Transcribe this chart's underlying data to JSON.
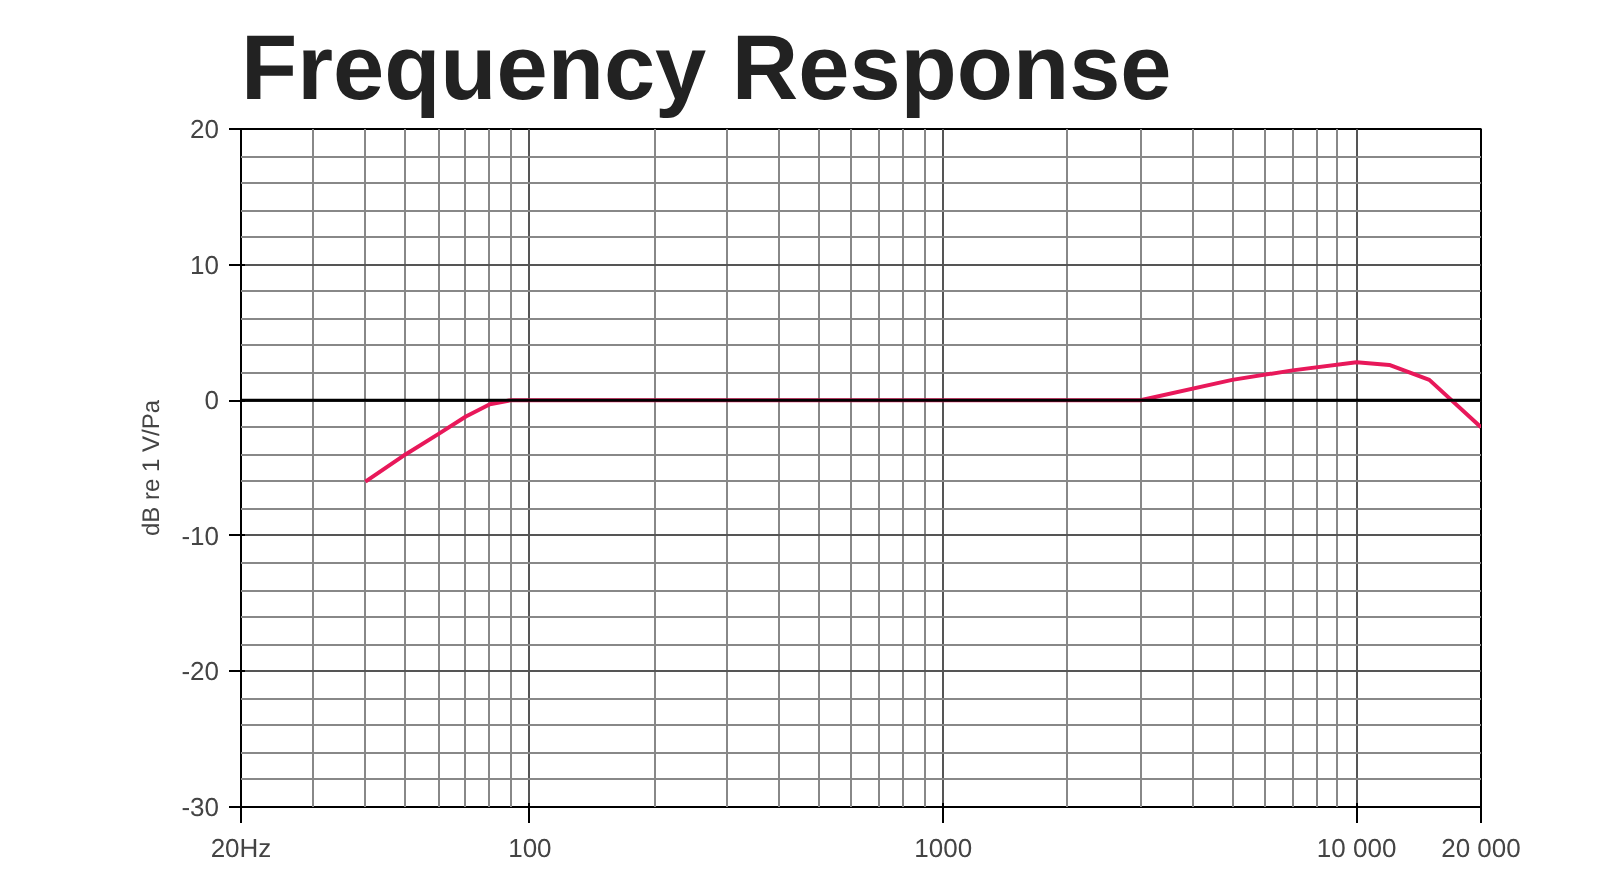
{
  "chart_data": {
    "type": "line",
    "title": "Frequency Response",
    "ylabel": "dB re 1 V/Pa",
    "log": "x",
    "xlim": [
      20,
      20000
    ],
    "ylim": [
      -30,
      20
    ],
    "xticks": [
      {
        "value": 20,
        "label": "20Hz"
      },
      100,
      1000,
      {
        "value": 10000,
        "label": "10 000"
      },
      {
        "value": 20000,
        "label": "20 000"
      }
    ],
    "yticks": [
      -30,
      -20,
      -10,
      0,
      10,
      20
    ],
    "grid": true,
    "marker": "none",
    "line_style": "solid",
    "ref_lines": [
      {
        "axis": "y",
        "value": 0,
        "label": null,
        "color": "#000000"
      }
    ],
    "series": [
      {
        "color": "#e8185a",
        "x": [
          40,
          50,
          60,
          70,
          80,
          90,
          3000,
          5000,
          7000,
          10000,
          12000,
          15000,
          20000
        ],
        "values": [
          -6,
          -4,
          -2.5,
          -1.2,
          -0.3,
          0,
          0,
          1.5,
          2.2,
          2.8,
          2.6,
          1.5,
          -2
        ]
      }
    ]
  }
}
